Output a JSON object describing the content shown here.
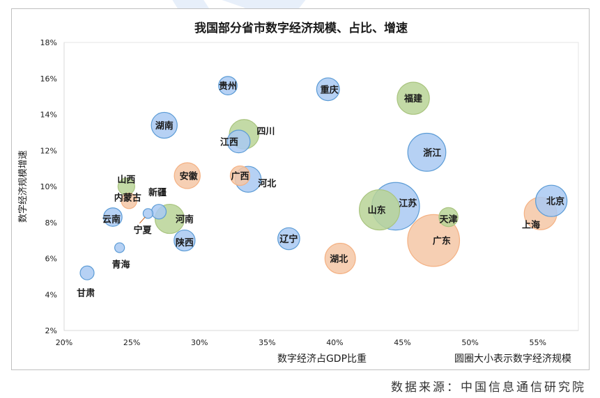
{
  "chart_data": {
    "type": "scatter",
    "subtype": "bubble",
    "title": "我国部分省市数字经济规模、占比、增速",
    "xlabel": "数字经济占GDP比重",
    "ylabel": "数字经济规模增速",
    "size_note": "圆圈大小表示数字经济规模",
    "xlim": [
      0.2,
      0.58
    ],
    "ylim": [
      0.02,
      0.18
    ],
    "x_ticks": [
      0.2,
      0.25,
      0.3,
      0.35,
      0.4,
      0.45,
      0.5,
      0.55
    ],
    "x_tick_labels": [
      "20%",
      "25%",
      "30%",
      "35%",
      "40%",
      "45%",
      "50%",
      "55%"
    ],
    "y_ticks": [
      0.02,
      0.04,
      0.06,
      0.08,
      0.1,
      0.12,
      0.14,
      0.16,
      0.18
    ],
    "y_tick_labels": [
      "2%",
      "4%",
      "6%",
      "8%",
      "10%",
      "12%",
      "14%",
      "16%",
      "18%"
    ],
    "grid": false,
    "legend": "none",
    "colors": {
      "blue": "#a9c9f2",
      "orange": "#f5c7a6",
      "green": "#b9d496",
      "gray": "#c9c9c9"
    },
    "points": [
      {
        "label": "甘肃",
        "x": 0.217,
        "y": 0.052,
        "size": 0.6,
        "color": "blue"
      },
      {
        "label": "青海",
        "x": 0.241,
        "y": 0.066,
        "size": 0.2,
        "color": "blue"
      },
      {
        "label": "云南",
        "x": 0.236,
        "y": 0.083,
        "size": 1.3,
        "color": "blue"
      },
      {
        "label": "山西",
        "x": 0.246,
        "y": 0.1,
        "size": 1.0,
        "color": "green"
      },
      {
        "label": "内蒙古",
        "x": 0.248,
        "y": 0.092,
        "size": 0.8,
        "color": "orange"
      },
      {
        "label": "宁夏",
        "x": 0.262,
        "y": 0.085,
        "size": 0.2,
        "color": "blue"
      },
      {
        "label": "新疆",
        "x": 0.27,
        "y": 0.086,
        "size": 0.7,
        "color": "blue"
      },
      {
        "label": "河南",
        "x": 0.278,
        "y": 0.082,
        "size": 4.0,
        "color": "green"
      },
      {
        "label": "湖南",
        "x": 0.274,
        "y": 0.134,
        "size": 3.0,
        "color": "blue"
      },
      {
        "label": "陕西",
        "x": 0.289,
        "y": 0.07,
        "size": 1.8,
        "color": "blue"
      },
      {
        "label": "安徽",
        "x": 0.291,
        "y": 0.106,
        "size": 3.0,
        "color": "orange"
      },
      {
        "label": "贵州",
        "x": 0.321,
        "y": 0.156,
        "size": 1.3,
        "color": "blue"
      },
      {
        "label": "四川",
        "x": 0.333,
        "y": 0.129,
        "size": 4.1,
        "color": "green"
      },
      {
        "label": "江西",
        "x": 0.329,
        "y": 0.125,
        "size": 2.2,
        "color": "blue"
      },
      {
        "label": "广西",
        "x": 0.33,
        "y": 0.106,
        "size": 1.5,
        "color": "orange"
      },
      {
        "label": "河北",
        "x": 0.336,
        "y": 0.104,
        "size": 3.0,
        "color": "blue"
      },
      {
        "label": "辽宁",
        "x": 0.366,
        "y": 0.071,
        "size": 2.0,
        "color": "blue"
      },
      {
        "label": "重庆",
        "x": 0.395,
        "y": 0.154,
        "size": 2.2,
        "color": "blue"
      },
      {
        "label": "湖北",
        "x": 0.404,
        "y": 0.06,
        "size": 4.4,
        "color": "orange"
      },
      {
        "label": "江苏",
        "x": 0.445,
        "y": 0.089,
        "size": 12.0,
        "color": "blue"
      },
      {
        "label": "山东",
        "x": 0.433,
        "y": 0.087,
        "size": 8.3,
        "color": "green"
      },
      {
        "label": "福建",
        "x": 0.458,
        "y": 0.149,
        "size": 5.0,
        "color": "green"
      },
      {
        "label": "浙江",
        "x": 0.468,
        "y": 0.119,
        "size": 7.3,
        "color": "blue"
      },
      {
        "label": "广东",
        "x": 0.473,
        "y": 0.07,
        "size": 14.5,
        "color": "orange"
      },
      {
        "label": "天津",
        "x": 0.484,
        "y": 0.083,
        "size": 1.4,
        "color": "green"
      },
      {
        "label": "上海",
        "x": 0.552,
        "y": 0.085,
        "size": 5.1,
        "color": "orange"
      },
      {
        "label": "北京",
        "x": 0.56,
        "y": 0.092,
        "size": 4.7,
        "color": "blue"
      }
    ],
    "point_labels": [
      {
        "text": "甘肃",
        "x": 0.216,
        "y": 0.041
      },
      {
        "text": "青海",
        "x": 0.242,
        "y": 0.057
      },
      {
        "text": "云南",
        "x": 0.235,
        "y": 0.082
      },
      {
        "text": "山西",
        "x": 0.246,
        "y": 0.104
      },
      {
        "text": "内蒙古",
        "x": 0.247,
        "y": 0.094
      },
      {
        "text": "宁夏",
        "x": 0.258,
        "y": 0.076
      },
      {
        "text": "新疆",
        "x": 0.269,
        "y": 0.097
      },
      {
        "text": "河南",
        "x": 0.289,
        "y": 0.082
      },
      {
        "text": "湖南",
        "x": 0.274,
        "y": 0.134
      },
      {
        "text": "陕西",
        "x": 0.289,
        "y": 0.069
      },
      {
        "text": "安徽",
        "x": 0.292,
        "y": 0.106
      },
      {
        "text": "贵州",
        "x": 0.321,
        "y": 0.156
      },
      {
        "text": "四川",
        "x": 0.349,
        "y": 0.131
      },
      {
        "text": "江西",
        "x": 0.322,
        "y": 0.125
      },
      {
        "text": "广西",
        "x": 0.33,
        "y": 0.106
      },
      {
        "text": "河北",
        "x": 0.35,
        "y": 0.102
      },
      {
        "text": "辽宁",
        "x": 0.366,
        "y": 0.071
      },
      {
        "text": "重庆",
        "x": 0.396,
        "y": 0.154
      },
      {
        "text": "湖北",
        "x": 0.403,
        "y": 0.06
      },
      {
        "text": "江苏",
        "x": 0.454,
        "y": 0.091
      },
      {
        "text": "山东",
        "x": 0.431,
        "y": 0.087
      },
      {
        "text": "福建",
        "x": 0.458,
        "y": 0.149
      },
      {
        "text": "浙江",
        "x": 0.472,
        "y": 0.119
      },
      {
        "text": "广东",
        "x": 0.479,
        "y": 0.07
      },
      {
        "text": "天津",
        "x": 0.484,
        "y": 0.082
      },
      {
        "text": "上海",
        "x": 0.545,
        "y": 0.079
      },
      {
        "text": "北京",
        "x": 0.563,
        "y": 0.092
      }
    ]
  },
  "source_note": "数据来源：中国信息通信研究院"
}
